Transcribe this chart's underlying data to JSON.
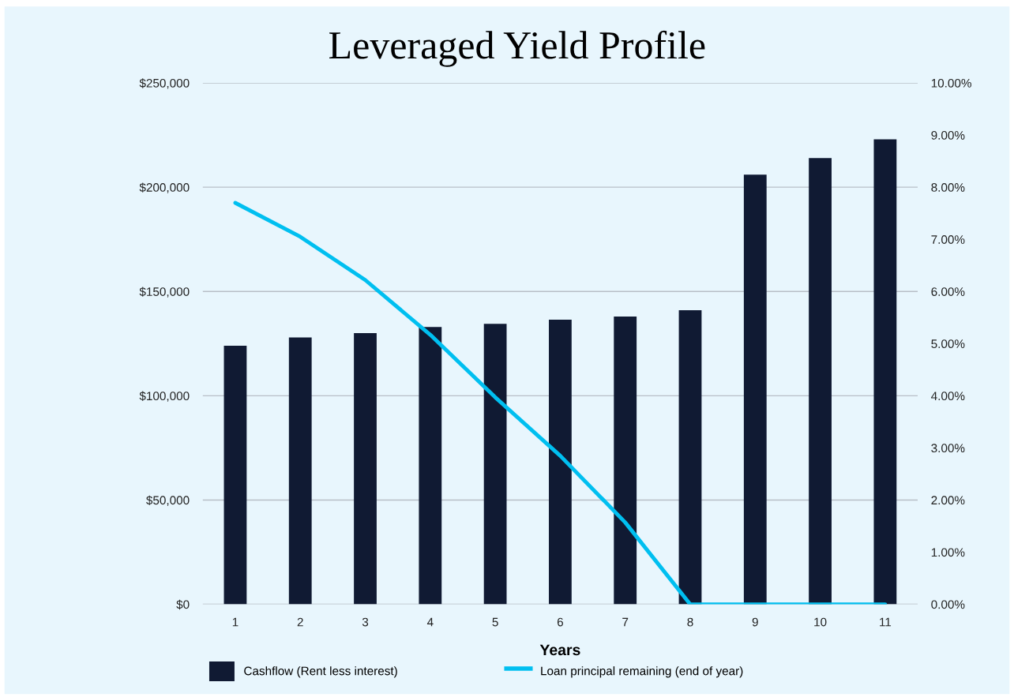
{
  "chart_data": {
    "type": "bar",
    "title": "Leveraged Yield Profile",
    "xlabel": "Years",
    "categories": [
      "1",
      "2",
      "3",
      "4",
      "5",
      "6",
      "7",
      "8",
      "9",
      "10",
      "11"
    ],
    "series": [
      {
        "name": "Cashflow (Rent less interest)",
        "color": "#101a33",
        "values": [
          124000,
          128000,
          130000,
          133000,
          134500,
          136500,
          138000,
          141000,
          206000,
          214000,
          223000
        ]
      },
      {
        "name": "Loan principal remaining (end of year)",
        "type": "line",
        "axis": "y2",
        "color": "#00bff0",
        "values": [
          7.7,
          7.05,
          6.22,
          5.17,
          3.97,
          2.85,
          1.57,
          0,
          0,
          0,
          0
        ]
      }
    ],
    "ylim": [
      0,
      250000
    ],
    "yticks": [
      {
        "value": 0,
        "label": "$0"
      },
      {
        "value": 50000,
        "label": "$50,000"
      },
      {
        "value": 100000,
        "label": "$100,000"
      },
      {
        "value": 150000,
        "label": "$150,000"
      },
      {
        "value": 200000,
        "label": "$200,000"
      },
      {
        "value": 250000,
        "label": "$250,000"
      }
    ],
    "y2lim": [
      0,
      10
    ],
    "y2ticks": [
      {
        "value": 0,
        "label": "0.00%"
      },
      {
        "value": 1,
        "label": "1.00%"
      },
      {
        "value": 2,
        "label": "2.00%"
      },
      {
        "value": 3,
        "label": "3.00%"
      },
      {
        "value": 4,
        "label": "4.00%"
      },
      {
        "value": 5,
        "label": "5.00%"
      },
      {
        "value": 6,
        "label": "6.00%"
      },
      {
        "value": 7,
        "label": "7.00%"
      },
      {
        "value": 8,
        "label": "8.00%"
      },
      {
        "value": 9,
        "label": "9.00%"
      },
      {
        "value": 10,
        "label": "10.00%"
      }
    ],
    "grid": "y",
    "legend": "bottom"
  }
}
